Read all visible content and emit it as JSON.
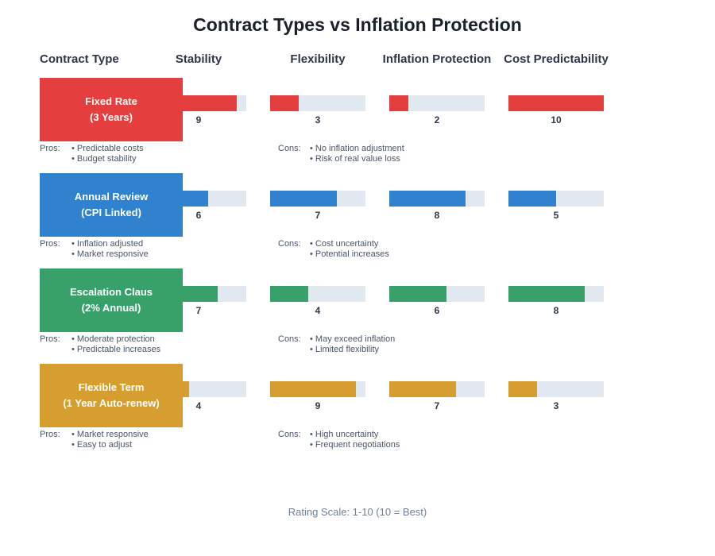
{
  "title": "Contract Types vs Inflation Protection",
  "columns": {
    "contract_type": "Contract Type",
    "stability": "Stability",
    "flexibility": "Flexibility",
    "inflation_protection": "Inflation Protection",
    "cost_predictability": "Cost Predictability"
  },
  "pros_label": "Pros:",
  "cons_label": "Cons:",
  "footer": "Rating Scale: 1-10 (10 = Best)",
  "colors": {
    "fixed_rate": "#E53E3E",
    "annual_review": "#3182CE",
    "escalation_clause": "#38A169",
    "flexible_term": "#D69E2E",
    "bar_background": "#E2E8F0",
    "title_text": "#1A202C",
    "body_text": "#4A5568",
    "footer_text": "#718096"
  },
  "rows": [
    {
      "label_line1": "Fixed Rate",
      "label_line2": "(3 Years)",
      "color": "#E53E3E",
      "ratings": {
        "stability": 9,
        "flexibility": 3,
        "inflation_protection": 2,
        "cost_predictability": 10
      },
      "pros": [
        "Predictable costs",
        "Budget stability"
      ],
      "cons": [
        "No inflation adjustment",
        "Risk of real value loss"
      ]
    },
    {
      "label_line1": "Annual Review",
      "label_line2": "(CPI Linked)",
      "color": "#3182CE",
      "ratings": {
        "stability": 6,
        "flexibility": 7,
        "inflation_protection": 8,
        "cost_predictability": 5
      },
      "pros": [
        "Inflation adjusted",
        "Market responsive"
      ],
      "cons": [
        "Cost uncertainty",
        "Potential increases"
      ]
    },
    {
      "label_line1": "Escalation Claus",
      "label_line2": "(2% Annual)",
      "color": "#38A169",
      "ratings": {
        "stability": 7,
        "flexibility": 4,
        "inflation_protection": 6,
        "cost_predictability": 8
      },
      "pros": [
        "Moderate protection",
        "Predictable increases"
      ],
      "cons": [
        "May exceed inflation",
        "Limited flexibility"
      ]
    },
    {
      "label_line1": "Flexible Term",
      "label_line2": "(1 Year Auto-renew)",
      "color": "#D69E2E",
      "ratings": {
        "stability": 4,
        "flexibility": 9,
        "inflation_protection": 7,
        "cost_predictability": 3
      },
      "pros": [
        "Market responsive",
        "Easy to adjust"
      ],
      "cons": [
        "High uncertainty",
        "Frequent negotiations"
      ]
    }
  ],
  "chart_data": {
    "type": "bar",
    "orientation": "horizontal",
    "categories": [
      "Fixed Rate (3 Years)",
      "Annual Review (CPI Linked)",
      "Escalation Clause (2% Annual)",
      "Flexible Term (1 Year Auto-renew)"
    ],
    "series": [
      {
        "name": "Stability",
        "values": [
          9,
          6,
          7,
          4
        ]
      },
      {
        "name": "Flexibility",
        "values": [
          3,
          7,
          4,
          9
        ]
      },
      {
        "name": "Inflation Protection",
        "values": [
          2,
          8,
          6,
          7
        ]
      },
      {
        "name": "Cost Predictability",
        "values": [
          10,
          5,
          8,
          3
        ]
      }
    ],
    "value_range": [
      0,
      10
    ],
    "title": "Contract Types vs Inflation Protection",
    "note": "Rating Scale: 1-10 (10 = Best)",
    "grid": false,
    "legend_position": "none"
  }
}
